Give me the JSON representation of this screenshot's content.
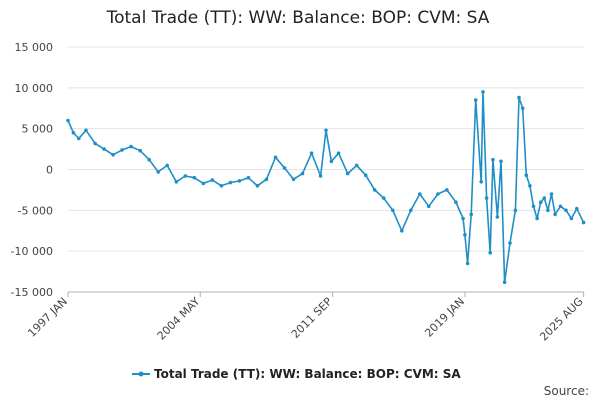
{
  "chart_data": {
    "type": "line",
    "title": "Total Trade (TT): WW: Balance: BOP: CVM: SA",
    "xlabel": "",
    "ylabel": "",
    "ylim": [
      -15000,
      15000
    ],
    "yticks": [
      15000,
      10000,
      5000,
      0,
      -5000,
      -10000,
      -15000
    ],
    "ytick_labels": [
      "15 000",
      "10 000",
      "5 000",
      "0",
      "-5 000",
      "-10 000",
      "-15 000"
    ],
    "xlim": [
      1997.0,
      2025.6
    ],
    "xticks": [
      1997.0,
      2004.33,
      2011.67,
      2019.0,
      2025.58
    ],
    "xtick_labels": [
      "1997 JAN",
      "2004 MAY",
      "2011 SEP",
      "2019 JAN",
      "2025 AUG"
    ],
    "grid": true,
    "legend": "bottom-center",
    "series": [
      {
        "name": "Total Trade (TT): WW: Balance: BOP: CVM: SA",
        "color": "#1f8fc6",
        "x": [
          1997.0,
          1997.3,
          1997.6,
          1998.0,
          1998.5,
          1999.0,
          1999.5,
          2000.0,
          2000.5,
          2001.0,
          2001.5,
          2002.0,
          2002.5,
          2003.0,
          2003.5,
          2004.0,
          2004.5,
          2005.0,
          2005.5,
          2006.0,
          2006.5,
          2007.0,
          2007.5,
          2008.0,
          2008.5,
          2009.0,
          2009.5,
          2010.0,
          2010.5,
          2011.0,
          2011.3,
          2011.6,
          2012.0,
          2012.5,
          2013.0,
          2013.5,
          2014.0,
          2014.5,
          2015.0,
          2015.5,
          2016.0,
          2016.5,
          2017.0,
          2017.5,
          2018.0,
          2018.5,
          2018.9,
          2019.0,
          2019.15,
          2019.35,
          2019.6,
          2019.9,
          2020.0,
          2020.2,
          2020.4,
          2020.55,
          2020.8,
          2021.0,
          2021.2,
          2021.5,
          2021.8,
          2022.0,
          2022.2,
          2022.4,
          2022.6,
          2022.8,
          2023.0,
          2023.2,
          2023.4,
          2023.6,
          2023.8,
          2024.0,
          2024.3,
          2024.6,
          2024.9,
          2025.2,
          2025.58
        ],
        "values": [
          6000,
          4500,
          3800,
          4800,
          3200,
          2500,
          1800,
          2400,
          2800,
          2300,
          1200,
          -300,
          500,
          -1500,
          -800,
          -1000,
          -1700,
          -1300,
          -2000,
          -1600,
          -1400,
          -1000,
          -2000,
          -1200,
          1500,
          200,
          -1200,
          -500,
          2000,
          -800,
          4800,
          1000,
          2000,
          -500,
          500,
          -700,
          -2500,
          -3500,
          -5000,
          -7500,
          -5000,
          -3000,
          -4500,
          -3000,
          -2500,
          -4000,
          -6000,
          -8000,
          -11500,
          -5500,
          8500,
          -1500,
          9500,
          -3500,
          -10200,
          1200,
          -5800,
          1000,
          -13800,
          -9000,
          -5000,
          8800,
          7500,
          -700,
          -2000,
          -4500,
          -6000,
          -4000,
          -3500,
          -5000,
          -3000,
          -5500,
          -4500,
          -5000,
          -6000,
          -4800,
          -6500
        ]
      }
    ]
  },
  "legend": {
    "label": "Total Trade (TT): WW: Balance: BOP: CVM: SA"
  },
  "source_label": "Source:"
}
